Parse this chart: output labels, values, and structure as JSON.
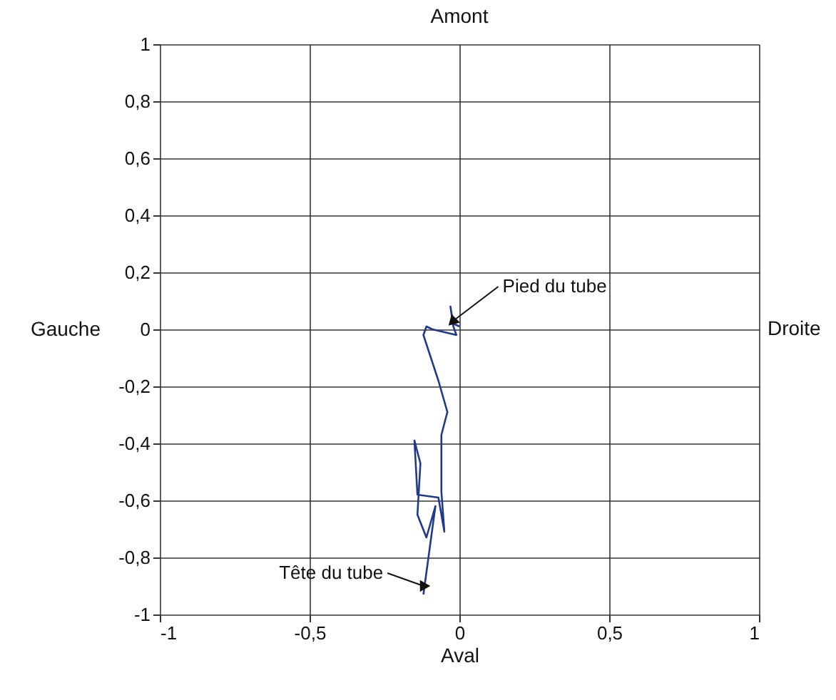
{
  "chart_data": {
    "type": "line",
    "title": "Amont",
    "xlabel": "Aval",
    "ylabel": "Gauche",
    "y2label": "Droite",
    "x": [
      -0.12,
      -0.08,
      -0.11,
      -0.14,
      -0.13,
      -0.15,
      -0.14,
      -0.07,
      -0.05,
      -0.06,
      -0.06,
      -0.04,
      -0.07,
      -0.12,
      -0.11,
      -0.09,
      -0.01,
      -0.02,
      -0.03,
      -0.02,
      0
    ],
    "series": [
      {
        "color": "#1f3a8a",
        "values": [
          -0.93,
          -0.62,
          -0.73,
          -0.65,
          -0.47,
          -0.39,
          -0.58,
          -0.59,
          -0.71,
          -0.57,
          -0.37,
          -0.29,
          -0.18,
          -0.02,
          0.01,
          0,
          -0.02,
          0.01,
          0.08,
          0.02,
          0.01
        ]
      }
    ],
    "xlim": [
      -1,
      1
    ],
    "ylim": [
      -1,
      1
    ],
    "xticks": [
      {
        "value": -1,
        "label": "-1"
      },
      {
        "value": -0.5,
        "label": "-0,5"
      },
      {
        "value": 0,
        "label": "0"
      },
      {
        "value": 0.5,
        "label": "0,5"
      },
      {
        "value": 1,
        "label": "1"
      }
    ],
    "yticks": [
      {
        "value": -1,
        "label": "-1"
      },
      {
        "value": -0.8,
        "label": "-0,8"
      },
      {
        "value": -0.6,
        "label": "-0,6"
      },
      {
        "value": -0.4,
        "label": "-0,4"
      },
      {
        "value": -0.2,
        "label": "-0,2"
      },
      {
        "value": 0,
        "label": "0"
      },
      {
        "value": 0.2,
        "label": "0,2"
      },
      {
        "value": 0.4,
        "label": "0,4"
      },
      {
        "value": 0.6,
        "label": "0,6"
      },
      {
        "value": 0.8,
        "label": "0,8"
      },
      {
        "value": 1,
        "label": "1"
      }
    ],
    "annotations": [
      {
        "text": "Pied du tube",
        "x": -0.02,
        "y": 0.03
      },
      {
        "text": "Tête du tube",
        "x": -0.12,
        "y": -0.9
      }
    ],
    "grid": true,
    "marker": "none",
    "line_style": "solid"
  }
}
